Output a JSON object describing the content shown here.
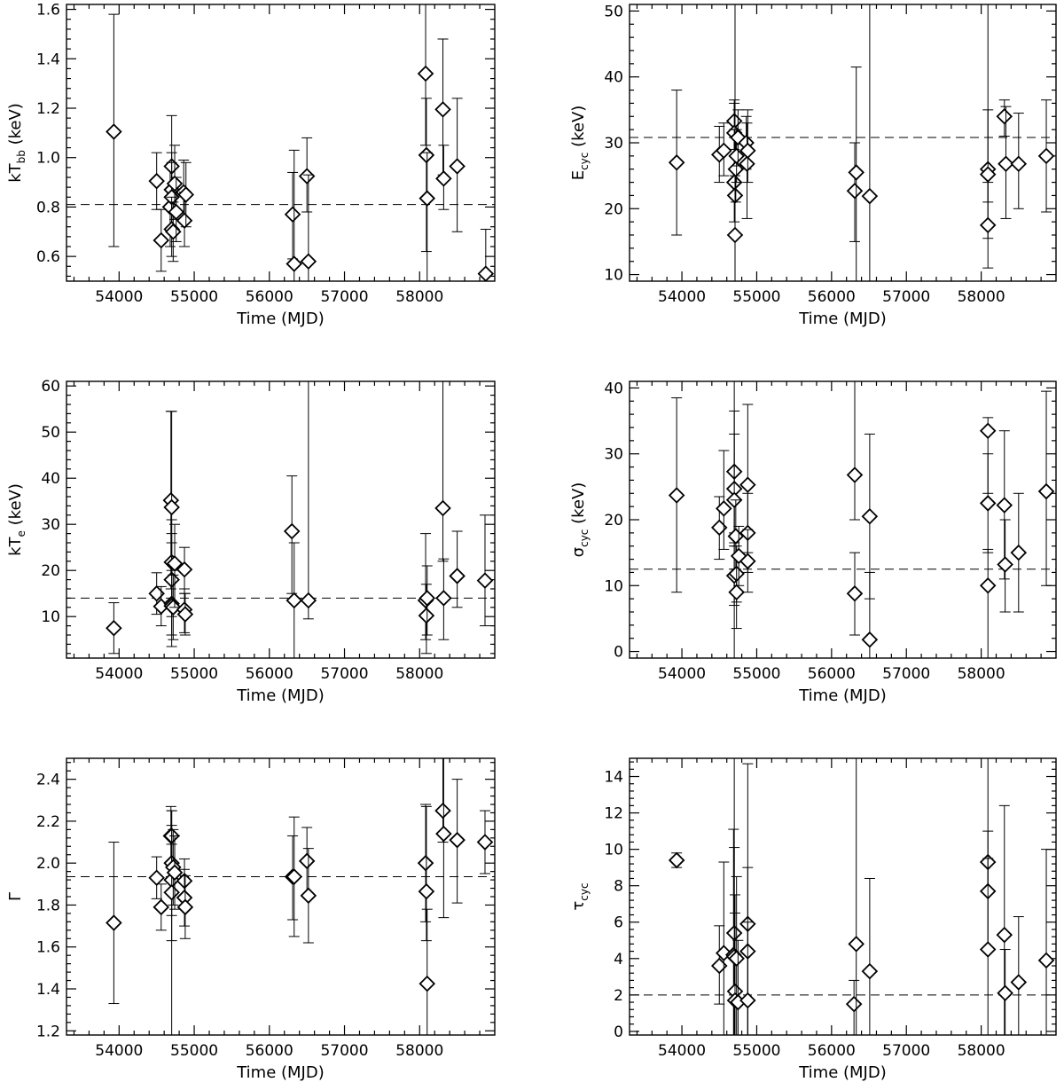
{
  "chart_data": [
    {
      "id": "kTbb",
      "type": "scatter",
      "xlabel": "Time (MJD)",
      "ylabel_main": "kT",
      "ylabel_sub": "bb",
      "ylabel_unit": " (keV)",
      "xlim": [
        53300,
        59000
      ],
      "ylim": [
        0.5,
        1.62
      ],
      "xticks": [
        54000,
        55000,
        56000,
        57000,
        58000
      ],
      "yticks": [
        0.6,
        0.8,
        1.0,
        1.2,
        1.4,
        1.6
      ],
      "ytick_labels": [
        "0.6",
        "0.8",
        "1.0",
        "1.2",
        "1.4",
        "1.6"
      ],
      "mean": 0.81,
      "points": [
        {
          "x": 53930,
          "y": 1.105,
          "lo": 0.64,
          "hi": 1.58
        },
        {
          "x": 54500,
          "y": 0.905,
          "lo": 0.79,
          "hi": 1.02
        },
        {
          "x": 54560,
          "y": 0.665,
          "lo": 0.54,
          "hi": 0.79
        },
        {
          "x": 54680,
          "y": 0.8,
          "lo": 0.64,
          "hi": 0.96
        },
        {
          "x": 54700,
          "y": 0.965,
          "lo": 0.85,
          "hi": 1.17
        },
        {
          "x": 54700,
          "y": 0.87,
          "lo": 0.72,
          "hi": 1.02
        },
        {
          "x": 54700,
          "y": 0.84,
          "lo": 0.7,
          "hi": 0.98
        },
        {
          "x": 54700,
          "y": 0.71,
          "lo": 0.6,
          "hi": 0.84
        },
        {
          "x": 54720,
          "y": 0.7,
          "lo": 0.58,
          "hi": 0.82
        },
        {
          "x": 54740,
          "y": 0.895,
          "lo": 0.75,
          "hi": 1.05
        },
        {
          "x": 54760,
          "y": 0.78,
          "lo": 0.66,
          "hi": 0.92
        },
        {
          "x": 54860,
          "y": 0.86,
          "lo": 0.74,
          "hi": 0.99
        },
        {
          "x": 54870,
          "y": 0.745,
          "lo": 0.64,
          "hi": 0.86
        },
        {
          "x": 54890,
          "y": 0.85,
          "lo": 0.72,
          "hi": 0.98
        },
        {
          "x": 56310,
          "y": 0.77,
          "lo": 0.59,
          "hi": 0.94
        },
        {
          "x": 56330,
          "y": 0.57,
          "lo": 0.5,
          "hi": 1.03
        },
        {
          "x": 56500,
          "y": 0.925,
          "lo": 0.78,
          "hi": 1.08
        },
        {
          "x": 56520,
          "y": 0.58,
          "lo": 0.5,
          "hi": 0.93
        },
        {
          "x": 58080,
          "y": 1.34,
          "lo": 1.05,
          "hi": 1.62
        },
        {
          "x": 58090,
          "y": 1.01,
          "lo": 0.62,
          "hi": 1.24
        },
        {
          "x": 58100,
          "y": 0.835,
          "lo": 0.5,
          "hi": 1.02
        },
        {
          "x": 58310,
          "y": 1.195,
          "lo": 0.93,
          "hi": 1.48
        },
        {
          "x": 58320,
          "y": 0.915,
          "lo": 0.79,
          "hi": 1.05
        },
        {
          "x": 58500,
          "y": 0.965,
          "lo": 0.7,
          "hi": 1.24
        },
        {
          "x": 58880,
          "y": 0.53,
          "lo": 0.5,
          "hi": 0.71
        }
      ]
    },
    {
      "id": "Ecyc",
      "type": "scatter",
      "xlabel": "Time (MJD)",
      "ylabel_main": "E",
      "ylabel_sub": "cyc",
      "ylabel_unit": " (keV)",
      "xlim": [
        53300,
        59000
      ],
      "ylim": [
        9,
        51
      ],
      "xticks": [
        54000,
        55000,
        56000,
        57000,
        58000
      ],
      "yticks": [
        10,
        20,
        30,
        40,
        50
      ],
      "ytick_labels": [
        "10",
        "20",
        "30",
        "40",
        "50"
      ],
      "mean": 30.8,
      "points": [
        {
          "x": 53930,
          "y": 27.0,
          "lo": 16.0,
          "hi": 38.0
        },
        {
          "x": 54500,
          "y": 28.2,
          "lo": 24.0,
          "hi": 32.5
        },
        {
          "x": 54560,
          "y": 28.8,
          "lo": 25.0,
          "hi": 33.0
        },
        {
          "x": 54700,
          "y": 33.3,
          "lo": 29.0,
          "hi": 36.5
        },
        {
          "x": 54700,
          "y": 31.5,
          "lo": 26.0,
          "hi": 36.0
        },
        {
          "x": 54700,
          "y": 24.0,
          "lo": 18.0,
          "hi": 32.0
        },
        {
          "x": 54710,
          "y": 22.0,
          "lo": 9.0,
          "hi": 51.0
        },
        {
          "x": 54710,
          "y": 16.0,
          "lo": 9.0,
          "hi": 25.0
        },
        {
          "x": 54720,
          "y": 26.0,
          "lo": 21.0,
          "hi": 31.0
        },
        {
          "x": 54730,
          "y": 28.0,
          "lo": 24.0,
          "hi": 32.0
        },
        {
          "x": 54750,
          "y": 30.8,
          "lo": 26.5,
          "hi": 35.0
        },
        {
          "x": 54860,
          "y": 30.0,
          "lo": 26.0,
          "hi": 34.0
        },
        {
          "x": 54870,
          "y": 26.8,
          "lo": 18.5,
          "hi": 33.0
        },
        {
          "x": 54880,
          "y": 28.8,
          "lo": 24.0,
          "hi": 35.0
        },
        {
          "x": 56310,
          "y": 22.7,
          "lo": 15.0,
          "hi": 30.0
        },
        {
          "x": 56330,
          "y": 25.5,
          "lo": 9.0,
          "hi": 41.5
        },
        {
          "x": 56510,
          "y": 21.9,
          "lo": 9.0,
          "hi": 51.0
        },
        {
          "x": 58090,
          "y": 26.0,
          "lo": 21.0,
          "hi": 51.0
        },
        {
          "x": 58090,
          "y": 25.2,
          "lo": 15.5,
          "hi": 35.0
        },
        {
          "x": 58090,
          "y": 17.5,
          "lo": 11.0,
          "hi": 24.0
        },
        {
          "x": 58310,
          "y": 34.0,
          "lo": 31.0,
          "hi": 36.5
        },
        {
          "x": 58330,
          "y": 26.8,
          "lo": 18.5,
          "hi": 35.5
        },
        {
          "x": 58500,
          "y": 26.8,
          "lo": 20.0,
          "hi": 34.5
        },
        {
          "x": 58870,
          "y": 28.0,
          "lo": 19.5,
          "hi": 36.5
        }
      ]
    },
    {
      "id": "kTe",
      "type": "scatter",
      "xlabel": "Time (MJD)",
      "ylabel_main": "kT",
      "ylabel_sub": "e",
      "ylabel_unit": " (keV)",
      "xlim": [
        53300,
        59000
      ],
      "ylim": [
        1,
        61
      ],
      "xticks": [
        54000,
        55000,
        56000,
        57000,
        58000
      ],
      "yticks": [
        10,
        20,
        30,
        40,
        50,
        60
      ],
      "ytick_labels": [
        "10",
        "20",
        "30",
        "40",
        "50",
        "60"
      ],
      "mean": 14.0,
      "points": [
        {
          "x": 53930,
          "y": 7.5,
          "lo": 2.0,
          "hi": 13.0
        },
        {
          "x": 54500,
          "y": 15.0,
          "lo": 10.5,
          "hi": 19.5
        },
        {
          "x": 54560,
          "y": 12.2,
          "lo": 8.0,
          "hi": 16.5
        },
        {
          "x": 54690,
          "y": 35.2,
          "lo": 16.0,
          "hi": 54.5
        },
        {
          "x": 54700,
          "y": 33.7,
          "lo": 13.0,
          "hi": 54.5
        },
        {
          "x": 54700,
          "y": 21.8,
          "lo": 12.0,
          "hi": 31.0
        },
        {
          "x": 54700,
          "y": 18.0,
          "lo": 10.0,
          "hi": 26.0
        },
        {
          "x": 54700,
          "y": 12.8,
          "lo": 6.0,
          "hi": 20.0
        },
        {
          "x": 54700,
          "y": 12.3,
          "lo": 3.5,
          "hi": 28.0
        },
        {
          "x": 54720,
          "y": 12.0,
          "lo": 5.0,
          "hi": 19.0
        },
        {
          "x": 54740,
          "y": 21.5,
          "lo": 12.0,
          "hi": 30.0
        },
        {
          "x": 54870,
          "y": 20.2,
          "lo": 15.0,
          "hi": 25.0
        },
        {
          "x": 54870,
          "y": 11.5,
          "lo": 6.5,
          "hi": 16.0
        },
        {
          "x": 54880,
          "y": 10.5,
          "lo": 6.0,
          "hi": 15.0
        },
        {
          "x": 56300,
          "y": 28.5,
          "lo": 15.0,
          "hi": 40.5
        },
        {
          "x": 56330,
          "y": 13.5,
          "lo": 1.0,
          "hi": 26.0
        },
        {
          "x": 56520,
          "y": 13.5,
          "lo": 9.5,
          "hi": 61.0
        },
        {
          "x": 58080,
          "y": 13.5,
          "lo": 5.0,
          "hi": 28.0
        },
        {
          "x": 58090,
          "y": 10.2,
          "lo": 2.0,
          "hi": 17.0
        },
        {
          "x": 58100,
          "y": 14.0,
          "lo": 6.0,
          "hi": 21.0
        },
        {
          "x": 58310,
          "y": 33.5,
          "lo": 22.0,
          "hi": 61.0
        },
        {
          "x": 58320,
          "y": 14.0,
          "lo": 5.0,
          "hi": 22.5
        },
        {
          "x": 58500,
          "y": 18.8,
          "lo": 12.0,
          "hi": 28.5
        },
        {
          "x": 58870,
          "y": 17.8,
          "lo": 8.0,
          "hi": 32.0
        }
      ]
    },
    {
      "id": "sigmacyc",
      "type": "scatter",
      "xlabel": "Time (MJD)",
      "ylabel_main": "σ",
      "ylabel_sub": "cyc",
      "ylabel_unit": " (keV)",
      "xlim": [
        53300,
        59000
      ],
      "ylim": [
        -1,
        41
      ],
      "xticks": [
        54000,
        55000,
        56000,
        57000,
        58000
      ],
      "yticks": [
        0,
        10,
        20,
        30,
        40
      ],
      "ytick_labels": [
        "0",
        "10",
        "20",
        "30",
        "40"
      ],
      "mean": 12.5,
      "points": [
        {
          "x": 53930,
          "y": 23.7,
          "lo": 9.0,
          "hi": 38.5
        },
        {
          "x": 54500,
          "y": 18.8,
          "lo": 14.0,
          "hi": 23.5
        },
        {
          "x": 54560,
          "y": 21.7,
          "lo": 15.5,
          "hi": 30.5
        },
        {
          "x": 54700,
          "y": 27.3,
          "lo": 18.0,
          "hi": 36.5
        },
        {
          "x": 54700,
          "y": 24.7,
          "lo": 16.0,
          "hi": 33.0
        },
        {
          "x": 54700,
          "y": 23.0,
          "lo": -1.0,
          "hi": 41.0
        },
        {
          "x": 54700,
          "y": 11.5,
          "lo": 7.0,
          "hi": 16.5
        },
        {
          "x": 54720,
          "y": 17.5,
          "lo": 12.5,
          "hi": 23.0
        },
        {
          "x": 54730,
          "y": 11.8,
          "lo": 7.5,
          "hi": 16.0
        },
        {
          "x": 54730,
          "y": 9.0,
          "lo": 3.5,
          "hi": 14.5
        },
        {
          "x": 54760,
          "y": 14.5,
          "lo": 10.0,
          "hi": 19.0
        },
        {
          "x": 54880,
          "y": 25.3,
          "lo": 15.0,
          "hi": 37.5
        },
        {
          "x": 54880,
          "y": 18.0,
          "lo": 12.0,
          "hi": 24.0
        },
        {
          "x": 54880,
          "y": 13.7,
          "lo": 9.0,
          "hi": 18.5
        },
        {
          "x": 56310,
          "y": 26.8,
          "lo": 20.0,
          "hi": 41.0
        },
        {
          "x": 56310,
          "y": 8.8,
          "lo": 2.5,
          "hi": 15.0
        },
        {
          "x": 56510,
          "y": 20.5,
          "lo": 8.0,
          "hi": 33.0
        },
        {
          "x": 56510,
          "y": 1.8,
          "lo": -1.0,
          "hi": 12.0
        },
        {
          "x": 58090,
          "y": 33.5,
          "lo": 24.0,
          "hi": 35.5
        },
        {
          "x": 58090,
          "y": 22.5,
          "lo": 15.0,
          "hi": 30.0
        },
        {
          "x": 58090,
          "y": 10.0,
          "lo": -1.0,
          "hi": 15.5
        },
        {
          "x": 58310,
          "y": 22.2,
          "lo": 11.0,
          "hi": 33.5
        },
        {
          "x": 58320,
          "y": 13.2,
          "lo": 6.0,
          "hi": 20.0
        },
        {
          "x": 58500,
          "y": 15.0,
          "lo": 6.0,
          "hi": 24.0
        },
        {
          "x": 58870,
          "y": 24.3,
          "lo": 10.0,
          "hi": 39.5
        }
      ]
    },
    {
      "id": "Gamma",
      "type": "scatter",
      "xlabel": "Time (MJD)",
      "ylabel_main": "Γ",
      "ylabel_sub": "",
      "ylabel_unit": "",
      "xlim": [
        53300,
        59000
      ],
      "ylim": [
        1.18,
        2.5
      ],
      "xticks": [
        54000,
        55000,
        56000,
        57000,
        58000
      ],
      "yticks": [
        1.2,
        1.4,
        1.6,
        1.8,
        2.0,
        2.2,
        2.4
      ],
      "ytick_labels": [
        "1.2",
        "1.4",
        "1.6",
        "1.8",
        "2.0",
        "2.2",
        "2.4"
      ],
      "mean": 1.935,
      "points": [
        {
          "x": 53930,
          "y": 1.715,
          "lo": 1.33,
          "hi": 2.1
        },
        {
          "x": 54500,
          "y": 1.93,
          "lo": 1.83,
          "hi": 2.03
        },
        {
          "x": 54560,
          "y": 1.79,
          "lo": 1.68,
          "hi": 1.9
        },
        {
          "x": 54690,
          "y": 2.13,
          "lo": 1.99,
          "hi": 2.27
        },
        {
          "x": 54700,
          "y": 2.13,
          "lo": 1.99,
          "hi": 2.25
        },
        {
          "x": 54700,
          "y": 2.0,
          "lo": 1.75,
          "hi": 2.25
        },
        {
          "x": 54700,
          "y": 1.92,
          "lo": 1.18,
          "hi": 2.18
        },
        {
          "x": 54700,
          "y": 1.86,
          "lo": 1.63,
          "hi": 2.09
        },
        {
          "x": 54720,
          "y": 1.98,
          "lo": 1.8,
          "hi": 2.16
        },
        {
          "x": 54740,
          "y": 1.955,
          "lo": 1.78,
          "hi": 2.13
        },
        {
          "x": 54870,
          "y": 1.915,
          "lo": 1.8,
          "hi": 2.02
        },
        {
          "x": 54870,
          "y": 1.835,
          "lo": 1.7,
          "hi": 1.97
        },
        {
          "x": 54880,
          "y": 1.79,
          "lo": 1.64,
          "hi": 1.94
        },
        {
          "x": 56310,
          "y": 1.935,
          "lo": 1.73,
          "hi": 2.13
        },
        {
          "x": 56330,
          "y": 1.935,
          "lo": 1.65,
          "hi": 2.22
        },
        {
          "x": 56500,
          "y": 2.01,
          "lo": 1.85,
          "hi": 2.17
        },
        {
          "x": 56520,
          "y": 1.845,
          "lo": 1.62,
          "hi": 2.07
        },
        {
          "x": 58080,
          "y": 2.0,
          "lo": 1.72,
          "hi": 2.28
        },
        {
          "x": 58090,
          "y": 1.865,
          "lo": 1.63,
          "hi": 2.27
        },
        {
          "x": 58100,
          "y": 1.425,
          "lo": 1.18,
          "hi": 1.78
        },
        {
          "x": 58310,
          "y": 2.25,
          "lo": 2.1,
          "hi": 2.5
        },
        {
          "x": 58320,
          "y": 2.14,
          "lo": 1.74,
          "hi": 2.5
        },
        {
          "x": 58500,
          "y": 2.11,
          "lo": 1.81,
          "hi": 2.4
        },
        {
          "x": 58870,
          "y": 2.1,
          "lo": 1.95,
          "hi": 2.25
        }
      ]
    },
    {
      "id": "taucyc",
      "type": "scatter",
      "xlabel": "Time (MJD)",
      "ylabel_main": "τ",
      "ylabel_sub": "cyc",
      "ylabel_unit": "",
      "xlim": [
        53300,
        59000
      ],
      "ylim": [
        -0.2,
        15
      ],
      "xticks": [
        54000,
        55000,
        56000,
        57000,
        58000
      ],
      "yticks": [
        0,
        2,
        4,
        6,
        8,
        10,
        12,
        14
      ],
      "ytick_labels": [
        "0",
        "2",
        "4",
        "6",
        "8",
        "10",
        "12",
        "14"
      ],
      "mean": 2.0,
      "points": [
        {
          "x": 53930,
          "y": 9.4,
          "lo": 9.0,
          "hi": 9.8
        },
        {
          "x": 54500,
          "y": 3.6,
          "lo": 1.5,
          "hi": 5.8
        },
        {
          "x": 54560,
          "y": 4.3,
          "lo": -0.2,
          "hi": 9.3
        },
        {
          "x": 54690,
          "y": 4.2,
          "lo": -0.2,
          "hi": 11.1
        },
        {
          "x": 54700,
          "y": 5.4,
          "lo": -0.2,
          "hi": 15.0
        },
        {
          "x": 54700,
          "y": 4.1,
          "lo": -0.2,
          "hi": 10.1
        },
        {
          "x": 54710,
          "y": 2.2,
          "lo": -0.2,
          "hi": 7.5
        },
        {
          "x": 54710,
          "y": 1.7,
          "lo": -0.2,
          "hi": 6.5
        },
        {
          "x": 54730,
          "y": 4.0,
          "lo": -0.2,
          "hi": 8.5
        },
        {
          "x": 54750,
          "y": 1.6,
          "lo": -0.2,
          "hi": 5.0
        },
        {
          "x": 54880,
          "y": 5.9,
          "lo": -0.2,
          "hi": 14.7
        },
        {
          "x": 54880,
          "y": 4.4,
          "lo": -0.2,
          "hi": 9.0
        },
        {
          "x": 54880,
          "y": 1.7,
          "lo": -0.2,
          "hi": 6.0
        },
        {
          "x": 56300,
          "y": 1.5,
          "lo": -0.2,
          "hi": 2.8
        },
        {
          "x": 56330,
          "y": 4.8,
          "lo": -0.2,
          "hi": 15.0
        },
        {
          "x": 56510,
          "y": 3.3,
          "lo": -0.2,
          "hi": 8.4
        },
        {
          "x": 58090,
          "y": 9.3,
          "lo": 7.8,
          "hi": 15.0
        },
        {
          "x": 58090,
          "y": 7.7,
          "lo": 4.5,
          "hi": 11.0
        },
        {
          "x": 58090,
          "y": 4.5,
          "lo": -0.2,
          "hi": 9.5
        },
        {
          "x": 58310,
          "y": 5.3,
          "lo": -0.2,
          "hi": 12.4
        },
        {
          "x": 58320,
          "y": 2.1,
          "lo": -0.2,
          "hi": 4.5
        },
        {
          "x": 58500,
          "y": 2.7,
          "lo": -0.2,
          "hi": 6.3
        },
        {
          "x": 58870,
          "y": 3.9,
          "lo": -0.2,
          "hi": 10.0
        }
      ]
    }
  ]
}
